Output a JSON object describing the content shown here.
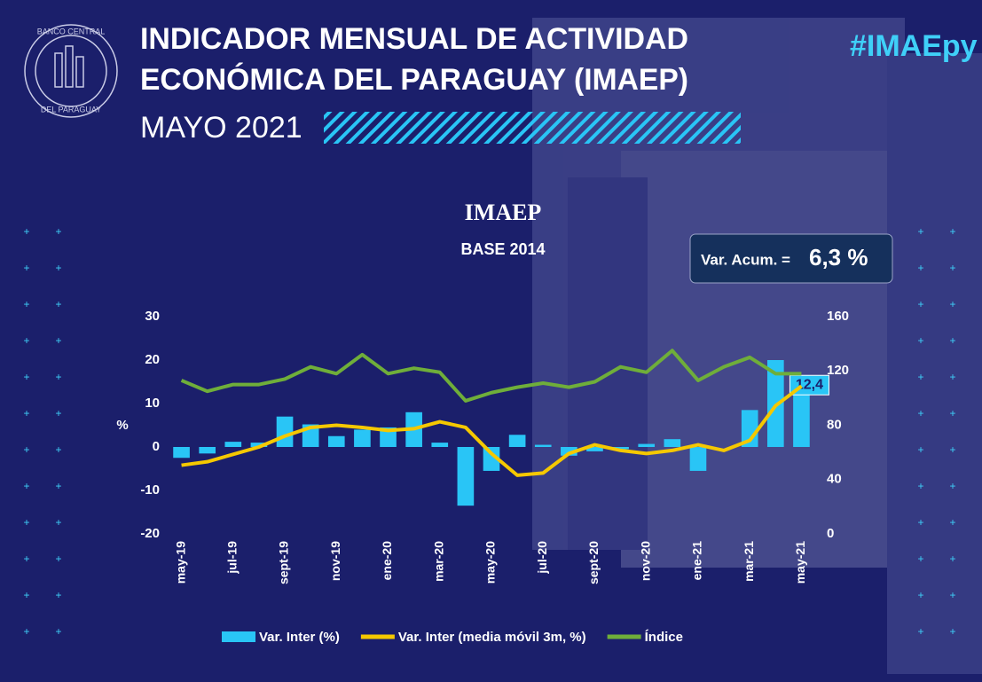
{
  "header": {
    "logo_top": "BANCO CENTRAL",
    "logo_bottom": "DEL PARAGUAY",
    "title_line1": "INDICADOR MENSUAL DE ACTIVIDAD",
    "title_line2": "ECONÓMICA DEL PARAGUAY (IMAEP)",
    "period": "MAYO 2021",
    "hashtag": "#IMAEpy"
  },
  "chart_data": {
    "type": "bar_line",
    "title": "IMAEP",
    "subtitle": "BASE 2014",
    "annotation": {
      "label": "Var. Acum. =",
      "value_label": "6,3 %"
    },
    "y_label": "%",
    "categories": [
      "may-19",
      null,
      "jul-19",
      null,
      "sept-19",
      null,
      "nov-19",
      null,
      "ene-20",
      null,
      "mar-20",
      null,
      "may-20",
      null,
      "jul-20",
      null,
      "sept-20",
      null,
      "nov-20",
      null,
      "ene-21",
      null,
      "mar-21",
      null,
      "may-21"
    ],
    "series": [
      {
        "name": "Var. Inter (%)",
        "type": "bar",
        "color": "#29c5f6",
        "values": [
          -2.5,
          -1.5,
          1.2,
          1.0,
          7.0,
          5.2,
          2.5,
          4.0,
          4.5,
          8.0,
          1.0,
          -13.5,
          -5.5,
          2.8,
          0.5,
          -2.0,
          -1.0,
          -0.5,
          0.7,
          1.8,
          -5.5,
          0,
          8.5,
          20.0,
          12.4
        ],
        "value_labels": [
          null,
          null,
          null,
          null,
          null,
          null,
          null,
          null,
          null,
          null,
          null,
          null,
          null,
          null,
          null,
          null,
          null,
          null,
          null,
          null,
          null,
          null,
          null,
          null,
          "12,4"
        ]
      },
      {
        "name": "Var. Inter (media móvil 3m, %)",
        "type": "line",
        "color": "#f5c800",
        "values": [
          -4.2,
          -3.4,
          -1.7,
          0,
          2.5,
          4.5,
          5.0,
          4.5,
          3.8,
          4.2,
          5.8,
          4.5,
          -1.5,
          -6.5,
          -6.0,
          -1.5,
          0.5,
          -0.8,
          -1.5,
          -0.8,
          0.5,
          -0.8,
          1.5,
          9.5,
          14.0
        ]
      },
      {
        "name": "Índice",
        "type": "line",
        "axis": "y2",
        "color": "#6fae3a",
        "values": [
          113,
          105,
          110,
          110,
          114,
          123,
          118,
          132,
          118,
          122,
          119,
          98,
          104,
          108,
          111,
          108,
          112,
          123,
          119,
          135,
          113,
          123,
          130,
          118,
          118
        ]
      }
    ],
    "ylim": [
      -20,
      30
    ],
    "yticks": [
      -20,
      -10,
      0,
      10,
      20,
      30
    ],
    "y2lim": [
      0,
      160
    ],
    "y2ticks": [
      0,
      40,
      80,
      120,
      160
    ],
    "grid": false
  }
}
